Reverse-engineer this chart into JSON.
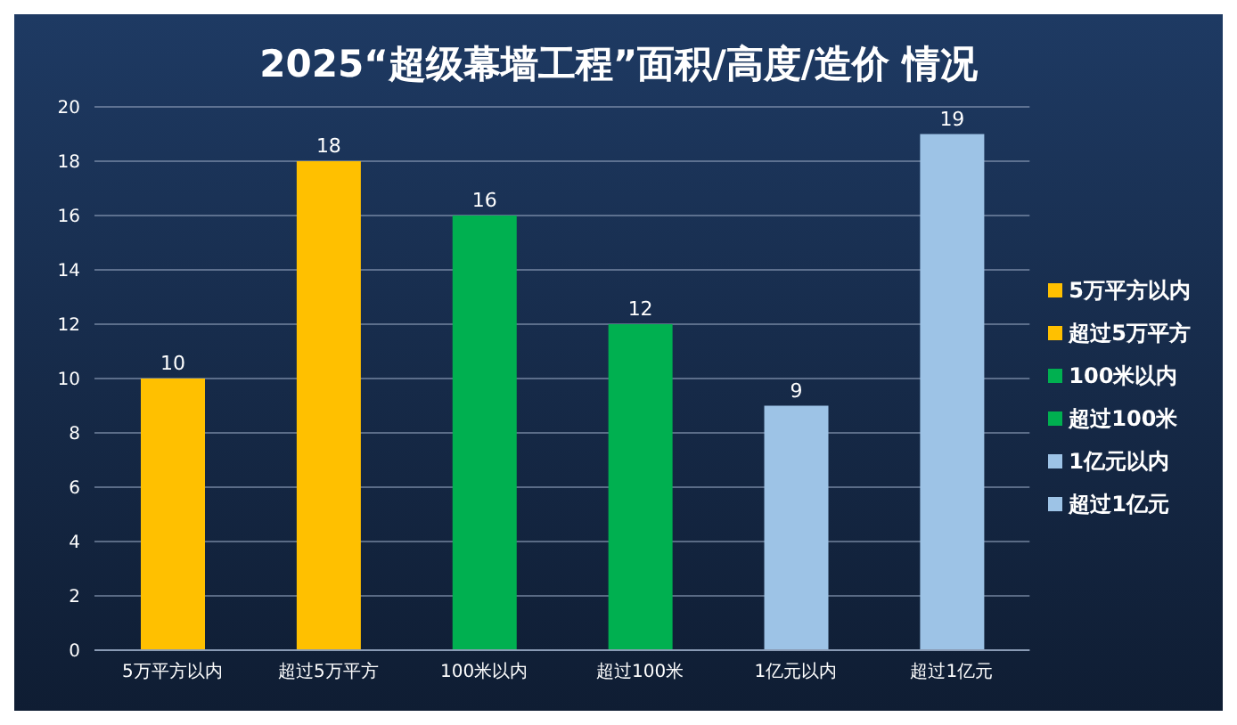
{
  "chart_data": {
    "type": "bar",
    "title": "2025“超级幕墙工程”面积/高度/造价 情况",
    "categories": [
      "5万平方以内",
      "超过5万平方",
      "100米以内",
      "超过100米",
      "1亿元以内",
      "超过1亿元"
    ],
    "series": [
      {
        "name": "5万平方以内",
        "color": "#ffc000",
        "values": [
          10,
          null,
          null,
          null,
          null,
          null
        ]
      },
      {
        "name": "超过5万平方",
        "color": "#ffc000",
        "values": [
          null,
          18,
          null,
          null,
          null,
          null
        ]
      },
      {
        "name": "100米以内",
        "color": "#00b050",
        "values": [
          null,
          null,
          16,
          null,
          null,
          null
        ]
      },
      {
        "name": "超过100米",
        "color": "#00b050",
        "values": [
          null,
          null,
          null,
          12,
          null,
          null
        ]
      },
      {
        "name": "1亿元以内",
        "color": "#9dc3e6",
        "values": [
          null,
          null,
          null,
          null,
          9,
          null
        ]
      },
      {
        "name": "超过1亿元",
        "color": "#9dc3e6",
        "values": [
          null,
          null,
          null,
          null,
          null,
          19
        ]
      }
    ],
    "ylim": [
      0,
      20
    ],
    "yticks": [
      0,
      2,
      4,
      6,
      8,
      10,
      12,
      14,
      16,
      18,
      20
    ],
    "grid": "y",
    "legend": "right",
    "data_labels": true
  }
}
